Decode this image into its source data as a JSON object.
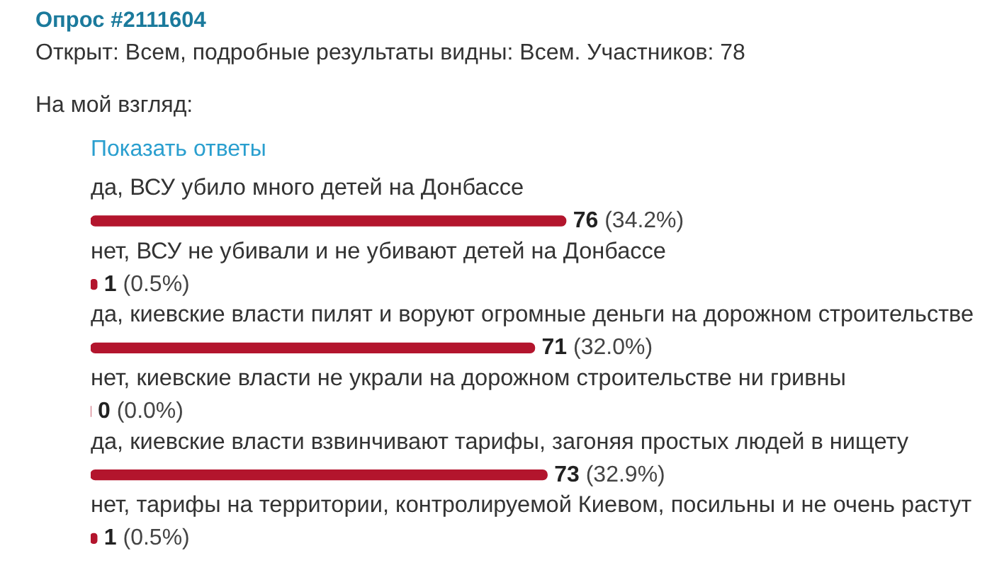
{
  "chart_data": {
    "type": "bar",
    "orientation": "horizontal",
    "title": "Опрос #2111604",
    "subtitle": "Открыт: Всем, подробные результаты видны: Всем. Участников: 78",
    "annotations": [
      "На мой взгляд:",
      "Показать ответы"
    ],
    "categories": [
      "да, ВСУ убило много детей на Донбассе",
      "нет, ВСУ не убивали и не убивают детей на Донбассе",
      "да, киевские власти пилят и воруют огромные деньги на дорожном строительстве",
      "нет, киевские власти не украли на дорожном строительстве ни гривны",
      "да, киевские власти взвинчивают тарифы, загоняя простых людей в нищету",
      "нет, тарифы на территории, контролируемой Киевом, посильны и не очень растут"
    ],
    "values": [
      76,
      1,
      71,
      0,
      73,
      1
    ],
    "value_labels": [
      "76 (34.2%)",
      "1 (0.5%)",
      "71 (32.0%)",
      "0 (0.0%)",
      "73 (32.9%)",
      "1 (0.5%)"
    ],
    "color": "#b3152d",
    "tick_labels": "y"
  }
}
